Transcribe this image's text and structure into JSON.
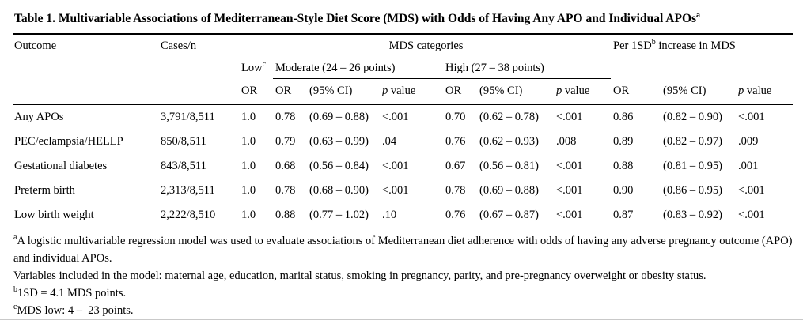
{
  "title": {
    "text": "Table 1. Multivariable Associations of Mediterranean-Style Diet Score (MDS) with Odds of Having Any APO and Individual APOs",
    "sup": "a"
  },
  "table": {
    "col_outcome": "Outcome",
    "col_cases": "Cases/n",
    "group_mds": "MDS categories",
    "group_per_sd": {
      "pre": "Per 1SD",
      "sup": "b",
      "post": " increase in MDS"
    },
    "sub_low": {
      "text": "Low",
      "sup": "c"
    },
    "sub_moderate": "Moderate (24 – 26 points)",
    "sub_high": "High (27 – 38 points)",
    "or_label": "OR",
    "ci_label": "(95% CI)",
    "p_label": {
      "p": "p",
      "rest": " value"
    },
    "rows": [
      [
        "Any APOs",
        "3,791/8,511",
        "1.0",
        "0.78",
        "(0.69 – 0.88)",
        "<.001",
        "0.70",
        "(0.62 – 0.78)",
        "<.001",
        "0.86",
        "(0.82 – 0.90)",
        "<.001"
      ],
      [
        "PEC/eclampsia/HELLP",
        "850/8,511",
        "1.0",
        "0.79",
        "(0.63 – 0.99)",
        ".04",
        "0.76",
        "(0.62 – 0.93)",
        ".008",
        "0.89",
        "(0.82 – 0.97)",
        ".009"
      ],
      [
        "Gestational diabetes",
        "843/8,511",
        "1.0",
        "0.68",
        "(0.56 – 0.84)",
        "<.001",
        "0.67",
        "(0.56 – 0.81)",
        "<.001",
        "0.88",
        "(0.81 – 0.95)",
        ".001"
      ],
      [
        "Preterm birth",
        "2,313/8,511",
        "1.0",
        "0.78",
        "(0.68 – 0.90)",
        "<.001",
        "0.78",
        "(0.69 – 0.88)",
        "<.001",
        "0.90",
        "(0.86 – 0.95)",
        "<.001"
      ],
      [
        "Low birth weight",
        "2,222/8,510",
        "1.0",
        "0.88",
        "(0.77 – 1.02)",
        ".10",
        "0.76",
        "(0.67 – 0.87)",
        "<.001",
        "0.87",
        "(0.83 – 0.92)",
        "<.001"
      ]
    ]
  },
  "footnotes": [
    {
      "sup": "a",
      "text": "A logistic multivariable regression model was used to evaluate associations of Mediterranean diet adherence with odds of having any adverse pregnancy outcome (APO) and individual APOs."
    },
    {
      "sup": "",
      "text": "Variables included in the model: maternal age, education, marital status, smoking in pregnancy, parity, and pre-pregnancy overweight or obesity status."
    },
    {
      "sup": "b",
      "text": "1SD = 4.1 MDS points."
    },
    {
      "sup": "c",
      "text": "MDS low: 4 –  23 points."
    }
  ]
}
